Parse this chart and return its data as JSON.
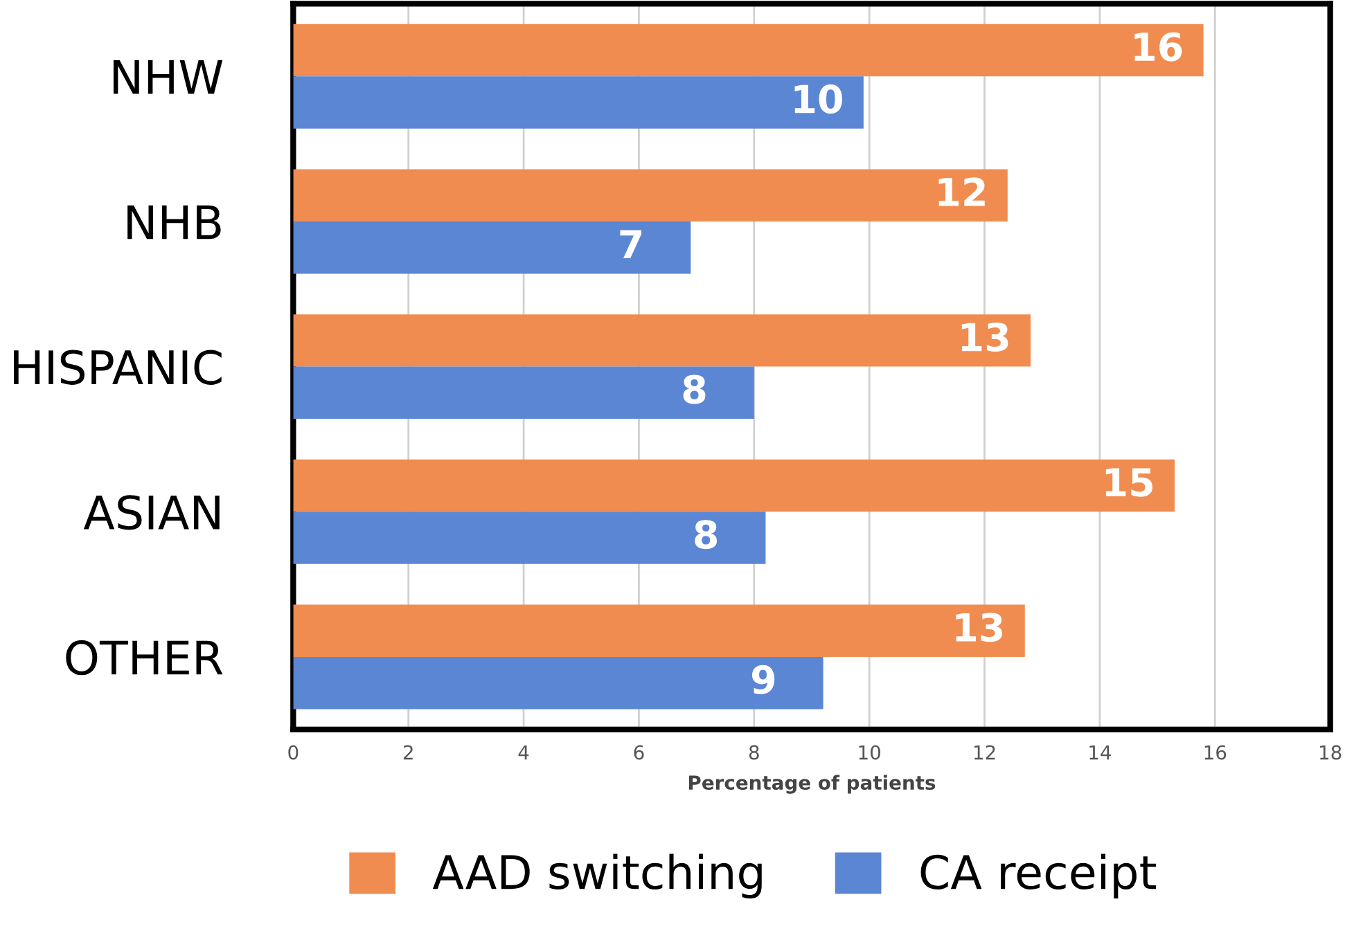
{
  "chart_data": {
    "type": "bar",
    "orientation": "horizontal",
    "xlabel": "Percentage of patients",
    "categories": [
      "NHW",
      "NHB",
      "HISPANIC",
      "ASIAN",
      "OTHER"
    ],
    "series": [
      {
        "name": "AAD switching",
        "color": "#f08c4f",
        "values": [
          15.8,
          12.4,
          12.8,
          15.3,
          12.7
        ],
        "value_labels": [
          "16",
          "12",
          "13",
          "15",
          "13"
        ]
      },
      {
        "name": "CA receipt",
        "color": "#5b86d3",
        "values": [
          9.9,
          6.9,
          8.0,
          8.2,
          9.2
        ],
        "value_labels": [
          "10",
          "7",
          "8",
          "8",
          "9"
        ]
      }
    ],
    "xlim": [
      0,
      18
    ],
    "xticks": [
      0,
      2,
      4,
      6,
      8,
      10,
      12,
      14,
      16,
      18
    ],
    "grid": "x",
    "legend": "bottom"
  }
}
